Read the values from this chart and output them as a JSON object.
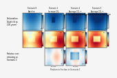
{
  "fig_bg": "#f5f5f5",
  "plot_bg": "#dde8f5",
  "n_rows_data": 3,
  "n_cols_data": 4,
  "col_headers": [
    "Scenario 0\nBaseline",
    "Scenario 1\nIncrease CO₂",
    "Scenario 2\nAverage CO₂ +\nwet/dry cycle precipitation",
    "Scenario 3\nAverage CO₂ +\nAverage 10% less precipitation"
  ],
  "row_labels": [
    "Carbonation\nDepth (0 to\n100 years)",
    "",
    "Relative corr.\ninitiating at\nScenario 1"
  ],
  "row0_cmap": "Blues",
  "row1_cmap": "RdYlBu",
  "row2_cmap": "RdBu",
  "bottom_label": "Position in Section in Scenario 1",
  "colorbar_ticks_row0": [
    "0",
    "100"
  ],
  "colorbar_ticks_row1": [
    "0",
    "100"
  ],
  "colorbar_ticks_row2": [
    "-50",
    "50"
  ],
  "row2_cols": [
    1,
    2
  ],
  "subplot_title_size": 1.8,
  "label_size": 2.0,
  "tick_size": 1.5
}
